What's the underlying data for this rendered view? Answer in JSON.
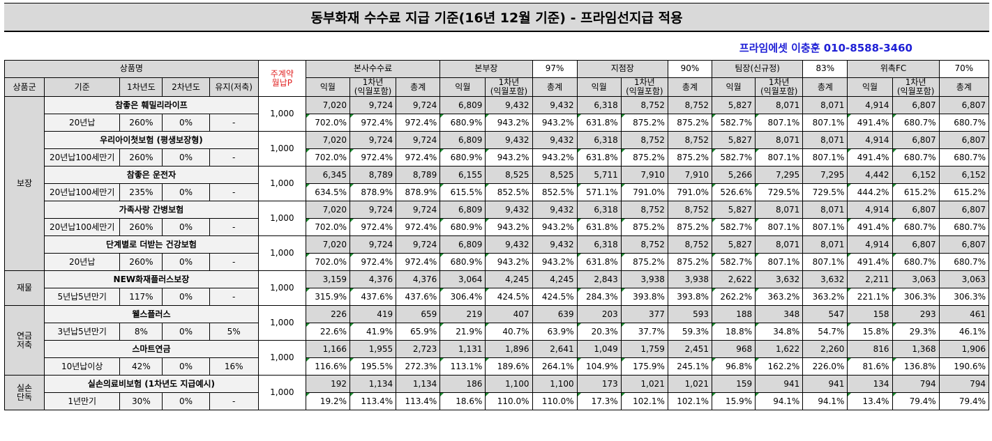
{
  "title": "동부화재 수수료 지급 기준(16년 12월 기준) - 프라임선지급 적용",
  "contact": "프라임에셋 이충훈 010-8588-3460",
  "header": {
    "product_name": "상품명",
    "monthly_premium": [
      "주계약",
      "월납P"
    ],
    "tiers": [
      {
        "name": "본사수수료",
        "rate": ""
      },
      {
        "name": "본부장",
        "rate": "97%"
      },
      {
        "name": "지점장",
        "rate": "90%"
      },
      {
        "name": "팀장(신규정)",
        "rate": "83%"
      },
      {
        "name": "위촉FC",
        "rate": "70%"
      }
    ],
    "sub": {
      "group": "상품군",
      "standard": "기준",
      "year1": "1차년도",
      "year2": "2차년도",
      "maint": "유지(저축)",
      "next_month": "익월",
      "first_year": [
        "1차년",
        "(익월포함)"
      ],
      "total": "총계"
    }
  },
  "groups": [
    {
      "name": [
        "보장"
      ],
      "products": [
        {
          "name": "참좋은 훼밀리라이프",
          "standard": "20년납",
          "y1": "260%",
          "y2": "0%",
          "maint": "-",
          "premium": "1,000",
          "amounts": [
            "7,020",
            "9,724",
            "9,724",
            "6,809",
            "9,432",
            "9,432",
            "6,318",
            "8,752",
            "8,752",
            "5,827",
            "8,071",
            "8,071",
            "4,914",
            "6,807",
            "6,807"
          ],
          "rates": [
            "702.0%",
            "972.4%",
            "972.4%",
            "680.9%",
            "943.2%",
            "943.2%",
            "631.8%",
            "875.2%",
            "875.2%",
            "582.7%",
            "807.1%",
            "807.1%",
            "491.4%",
            "680.7%",
            "680.7%"
          ]
        },
        {
          "name": "우리아이첫보험 (평생보장형)",
          "standard": "20년납100세만기",
          "y1": "260%",
          "y2": "0%",
          "maint": "-",
          "premium": "1,000",
          "amounts": [
            "7,020",
            "9,724",
            "9,724",
            "6,809",
            "9,432",
            "9,432",
            "6,318",
            "8,752",
            "8,752",
            "5,827",
            "8,071",
            "8,071",
            "4,914",
            "6,807",
            "6,807"
          ],
          "rates": [
            "702.0%",
            "972.4%",
            "972.4%",
            "680.9%",
            "943.2%",
            "943.2%",
            "631.8%",
            "875.2%",
            "875.2%",
            "582.7%",
            "807.1%",
            "807.1%",
            "491.4%",
            "680.7%",
            "680.7%"
          ]
        },
        {
          "name": "참좋은 운전자",
          "standard": "20년납100세만기",
          "y1": "235%",
          "y2": "0%",
          "maint": "-",
          "premium": "1,000",
          "amounts": [
            "6,345",
            "8,789",
            "8,789",
            "6,155",
            "8,525",
            "8,525",
            "5,711",
            "7,910",
            "7,910",
            "5,266",
            "7,295",
            "7,295",
            "4,442",
            "6,152",
            "6,152"
          ],
          "rates": [
            "634.5%",
            "878.9%",
            "878.9%",
            "615.5%",
            "852.5%",
            "852.5%",
            "571.1%",
            "791.0%",
            "791.0%",
            "526.6%",
            "729.5%",
            "729.5%",
            "444.2%",
            "615.2%",
            "615.2%"
          ]
        },
        {
          "name": "가족사랑 간병보험",
          "standard": "20년납100세만기",
          "y1": "260%",
          "y2": "0%",
          "maint": "-",
          "premium": "1,000",
          "amounts": [
            "7,020",
            "9,724",
            "9,724",
            "6,809",
            "9,432",
            "9,432",
            "6,318",
            "8,752",
            "8,752",
            "5,827",
            "8,071",
            "8,071",
            "4,914",
            "6,807",
            "6,807"
          ],
          "rates": [
            "702.0%",
            "972.4%",
            "972.4%",
            "680.9%",
            "943.2%",
            "943.2%",
            "631.8%",
            "875.2%",
            "875.2%",
            "582.7%",
            "807.1%",
            "807.1%",
            "491.4%",
            "680.7%",
            "680.7%"
          ]
        },
        {
          "name": "단계별로 더받는 건강보험",
          "standard": "20년납",
          "y1": "260%",
          "y2": "0%",
          "maint": "-",
          "premium": "1,000",
          "amounts": [
            "7,020",
            "9,724",
            "9,724",
            "6,809",
            "9,432",
            "9,432",
            "6,318",
            "8,752",
            "8,752",
            "5,827",
            "8,071",
            "8,071",
            "4,914",
            "6,807",
            "6,807"
          ],
          "rates": [
            "702.0%",
            "972.4%",
            "972.4%",
            "680.9%",
            "943.2%",
            "943.2%",
            "631.8%",
            "875.2%",
            "875.2%",
            "582.7%",
            "807.1%",
            "807.1%",
            "491.4%",
            "680.7%",
            "680.7%"
          ]
        }
      ]
    },
    {
      "name": [
        "재물"
      ],
      "products": [
        {
          "name": "NEW화재플러스보장",
          "standard": "5년납5년만기",
          "y1": "117%",
          "y2": "0%",
          "maint": "-",
          "premium": "1,000",
          "amounts": [
            "3,159",
            "4,376",
            "4,376",
            "3,064",
            "4,245",
            "4,245",
            "2,843",
            "3,938",
            "3,938",
            "2,622",
            "3,632",
            "3,632",
            "2,211",
            "3,063",
            "3,063"
          ],
          "rates": [
            "315.9%",
            "437.6%",
            "437.6%",
            "306.4%",
            "424.5%",
            "424.5%",
            "284.3%",
            "393.8%",
            "393.8%",
            "262.2%",
            "363.2%",
            "363.2%",
            "221.1%",
            "306.3%",
            "306.3%"
          ]
        }
      ]
    },
    {
      "name": [
        "연금",
        "저축"
      ],
      "products": [
        {
          "name": "웰스플러스",
          "standard": "3년납5년만기",
          "y1": "8%",
          "y2": "0%",
          "maint": "5%",
          "premium": "1,000",
          "amounts": [
            "226",
            "419",
            "659",
            "219",
            "407",
            "639",
            "203",
            "377",
            "593",
            "188",
            "348",
            "547",
            "158",
            "293",
            "461"
          ],
          "rates": [
            "22.6%",
            "41.9%",
            "65.9%",
            "21.9%",
            "40.7%",
            "63.9%",
            "20.3%",
            "37.7%",
            "59.3%",
            "18.8%",
            "34.8%",
            "54.7%",
            "15.8%",
            "29.3%",
            "46.1%"
          ]
        },
        {
          "name": "스마트연금",
          "standard": "10년납이상",
          "y1": "42%",
          "y2": "0%",
          "maint": "16%",
          "premium": "1,000",
          "amounts": [
            "1,166",
            "1,955",
            "2,723",
            "1,131",
            "1,896",
            "2,641",
            "1,049",
            "1,759",
            "2,451",
            "968",
            "1,622",
            "2,260",
            "816",
            "1,368",
            "1,906"
          ],
          "rates": [
            "116.6%",
            "195.5%",
            "272.3%",
            "113.1%",
            "189.6%",
            "264.1%",
            "104.9%",
            "175.9%",
            "245.1%",
            "96.8%",
            "162.2%",
            "226.0%",
            "81.6%",
            "136.8%",
            "190.6%"
          ]
        }
      ]
    },
    {
      "name": [
        "실손",
        "단독"
      ],
      "products": [
        {
          "name": "실손의료비보험 (1차년도 지급예시)",
          "standard": "1년만기",
          "y1": "30%",
          "y2": "0%",
          "maint": "-",
          "premium": "1,000",
          "amounts": [
            "192",
            "1,134",
            "1,134",
            "186",
            "1,100",
            "1,100",
            "173",
            "1,021",
            "1,021",
            "159",
            "941",
            "941",
            "134",
            "794",
            "794"
          ],
          "rates": [
            "19.2%",
            "113.4%",
            "113.4%",
            "18.6%",
            "110.0%",
            "110.0%",
            "17.3%",
            "102.1%",
            "102.1%",
            "15.9%",
            "94.1%",
            "94.1%",
            "13.4%",
            "79.4%",
            "79.4%"
          ]
        }
      ]
    }
  ]
}
